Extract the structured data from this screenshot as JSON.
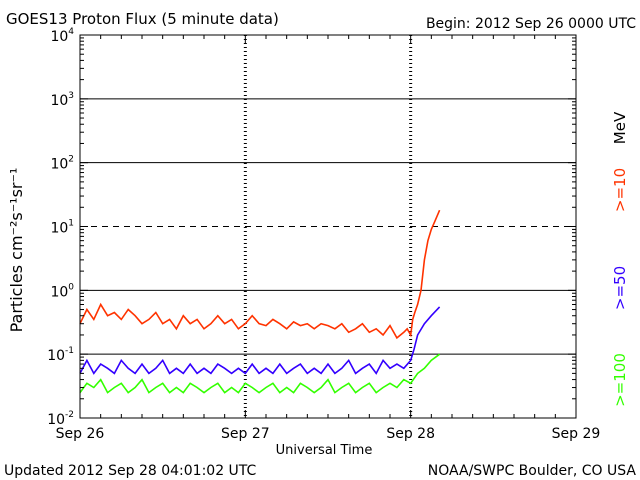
{
  "header": {
    "title": "GOES13 Proton Flux (5 minute data)",
    "begin": "Begin: 2012 Sep 26 0000 UTC"
  },
  "footer": {
    "updated": "Updated 2012 Sep 28 04:01:02 UTC",
    "credit": "NOAA/SWPC Boulder, CO USA"
  },
  "legend": {
    "unit": "MeV",
    "entries": [
      {
        "label": ">=10",
        "color": "#ff3300"
      },
      {
        "label": ">=50",
        "color": "#3300ff"
      },
      {
        "label": ">=100",
        "color": "#33ff00"
      }
    ]
  },
  "chart_data": {
    "type": "line",
    "title": "GOES13 Proton Flux (5 minute data)",
    "xlabel": "Universal Time",
    "ylabel": "Particles cm⁻²s⁻¹sr⁻¹",
    "yscale": "log",
    "ylim": [
      0.01,
      10000
    ],
    "xlim_hours": [
      0,
      72
    ],
    "x_ticks": [
      {
        "hour": 0,
        "label": "Sep 26"
      },
      {
        "hour": 24,
        "label": "Sep 27"
      },
      {
        "hour": 48,
        "label": "Sep 28"
      },
      {
        "hour": 72,
        "label": "Sep 29"
      }
    ],
    "y_ticks": [
      {
        "value": 0.01,
        "base": "10",
        "exp": "-2"
      },
      {
        "value": 0.1,
        "base": "10",
        "exp": "-1"
      },
      {
        "value": 1,
        "base": "10",
        "exp": "0"
      },
      {
        "value": 10,
        "base": "10",
        "exp": "1"
      },
      {
        "value": 100,
        "base": "10",
        "exp": "2"
      },
      {
        "value": 1000,
        "base": "10",
        "exp": "3"
      },
      {
        "value": 10000,
        "base": "10",
        "exp": "4"
      }
    ],
    "gridlines": [
      {
        "value": 0.1,
        "style": "solid"
      },
      {
        "value": 1,
        "style": "solid"
      },
      {
        "value": 10,
        "style": "dashed"
      },
      {
        "value": 100,
        "style": "solid"
      },
      {
        "value": 1000,
        "style": "solid"
      }
    ],
    "series": [
      {
        "name": ">=10 MeV",
        "color": "#ff3300",
        "x": [
          0,
          1,
          2,
          3,
          4,
          5,
          6,
          7,
          8,
          9,
          10,
          11,
          12,
          13,
          14,
          15,
          16,
          17,
          18,
          19,
          20,
          21,
          22,
          23,
          24,
          25,
          26,
          27,
          28,
          29,
          30,
          31,
          32,
          33,
          34,
          35,
          36,
          37,
          38,
          39,
          40,
          41,
          42,
          43,
          44,
          45,
          46,
          47,
          47.5,
          48,
          48.3,
          48.6,
          49,
          49.5,
          50,
          50.5,
          51,
          51.5,
          52.2
        ],
        "y": [
          0.3,
          0.5,
          0.35,
          0.6,
          0.4,
          0.45,
          0.35,
          0.5,
          0.4,
          0.3,
          0.35,
          0.45,
          0.3,
          0.35,
          0.25,
          0.4,
          0.3,
          0.35,
          0.25,
          0.3,
          0.4,
          0.3,
          0.35,
          0.25,
          0.3,
          0.4,
          0.3,
          0.28,
          0.35,
          0.3,
          0.25,
          0.32,
          0.28,
          0.3,
          0.25,
          0.3,
          0.28,
          0.25,
          0.3,
          0.22,
          0.25,
          0.3,
          0.22,
          0.25,
          0.2,
          0.28,
          0.18,
          0.22,
          0.25,
          0.2,
          0.35,
          0.45,
          0.6,
          1.0,
          3.0,
          6.0,
          9.0,
          12.0,
          18.0
        ]
      },
      {
        "name": ">=50 MeV",
        "color": "#3300ff",
        "x": [
          0,
          1,
          2,
          3,
          4,
          5,
          6,
          7,
          8,
          9,
          10,
          11,
          12,
          13,
          14,
          15,
          16,
          17,
          18,
          19,
          20,
          21,
          22,
          23,
          24,
          25,
          26,
          27,
          28,
          29,
          30,
          31,
          32,
          33,
          34,
          35,
          36,
          37,
          38,
          39,
          40,
          41,
          42,
          43,
          44,
          45,
          46,
          47,
          48,
          48.5,
          49,
          50,
          51,
          52.2
        ],
        "y": [
          0.05,
          0.08,
          0.05,
          0.07,
          0.06,
          0.05,
          0.08,
          0.06,
          0.05,
          0.07,
          0.05,
          0.06,
          0.08,
          0.05,
          0.06,
          0.05,
          0.07,
          0.05,
          0.06,
          0.05,
          0.07,
          0.06,
          0.05,
          0.06,
          0.05,
          0.07,
          0.05,
          0.06,
          0.05,
          0.07,
          0.05,
          0.06,
          0.07,
          0.05,
          0.06,
          0.05,
          0.07,
          0.05,
          0.06,
          0.08,
          0.05,
          0.06,
          0.07,
          0.05,
          0.08,
          0.06,
          0.07,
          0.06,
          0.08,
          0.12,
          0.2,
          0.3,
          0.4,
          0.55
        ]
      },
      {
        "name": ">=100 MeV",
        "color": "#33ff00",
        "x": [
          0,
          1,
          2,
          3,
          4,
          5,
          6,
          7,
          8,
          9,
          10,
          11,
          12,
          13,
          14,
          15,
          16,
          17,
          18,
          19,
          20,
          21,
          22,
          23,
          24,
          25,
          26,
          27,
          28,
          29,
          30,
          31,
          32,
          33,
          34,
          35,
          36,
          37,
          38,
          39,
          40,
          41,
          42,
          43,
          44,
          45,
          46,
          47,
          48,
          49,
          50,
          51,
          52.2
        ],
        "y": [
          0.025,
          0.035,
          0.03,
          0.04,
          0.025,
          0.03,
          0.035,
          0.025,
          0.03,
          0.04,
          0.025,
          0.03,
          0.035,
          0.025,
          0.03,
          0.025,
          0.035,
          0.03,
          0.025,
          0.03,
          0.035,
          0.025,
          0.03,
          0.025,
          0.035,
          0.03,
          0.025,
          0.03,
          0.035,
          0.025,
          0.03,
          0.025,
          0.035,
          0.03,
          0.025,
          0.03,
          0.04,
          0.025,
          0.03,
          0.035,
          0.025,
          0.03,
          0.035,
          0.025,
          0.03,
          0.035,
          0.03,
          0.04,
          0.035,
          0.05,
          0.06,
          0.08,
          0.1
        ]
      }
    ]
  }
}
